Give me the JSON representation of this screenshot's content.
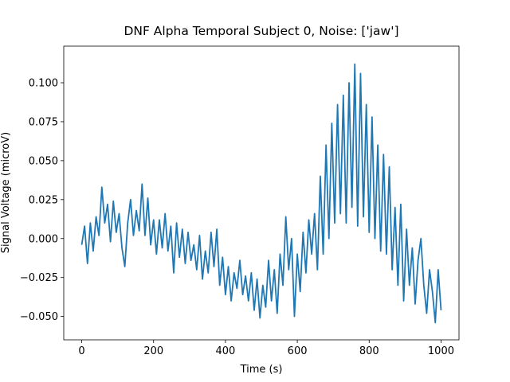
{
  "chart_data": {
    "type": "line",
    "title": "DNF Alpha Temporal Subject 0, Noise: ['jaw']",
    "x_label": "Time (s)",
    "y_label": "Signal Voltage (microV)",
    "x": [
      0,
      8,
      16,
      24,
      32,
      40,
      48,
      56,
      64,
      72,
      80,
      88,
      96,
      104,
      112,
      120,
      128,
      136,
      144,
      152,
      160,
      168,
      176,
      184,
      192,
      200,
      208,
      216,
      224,
      232,
      240,
      248,
      256,
      264,
      272,
      280,
      288,
      296,
      304,
      312,
      320,
      328,
      336,
      344,
      352,
      360,
      368,
      376,
      384,
      392,
      400,
      408,
      416,
      424,
      432,
      440,
      448,
      456,
      464,
      472,
      480,
      488,
      496,
      504,
      512,
      520,
      528,
      536,
      544,
      552,
      560,
      568,
      576,
      584,
      592,
      600,
      608,
      616,
      624,
      632,
      640,
      648,
      656,
      664,
      672,
      680,
      688,
      696,
      704,
      712,
      720,
      728,
      736,
      744,
      752,
      760,
      768,
      776,
      784,
      792,
      800,
      808,
      816,
      824,
      832,
      840,
      848,
      856,
      864,
      872,
      880,
      888,
      896,
      904,
      912,
      920,
      928,
      936,
      944,
      952,
      960,
      968,
      976,
      984,
      992,
      1000
    ],
    "series": [
      {
        "color": "#1f77b4",
        "values": [
          -0.004,
          0.008,
          -0.016,
          0.01,
          -0.008,
          0.014,
          0.002,
          0.033,
          0.01,
          0.022,
          -0.002,
          0.024,
          0.004,
          0.016,
          -0.006,
          -0.018,
          0.01,
          0.025,
          0.002,
          0.018,
          0.005,
          0.035,
          0.002,
          0.026,
          -0.004,
          0.012,
          -0.01,
          0.012,
          -0.006,
          0.016,
          -0.008,
          0.008,
          -0.022,
          0.01,
          -0.012,
          0.006,
          -0.016,
          0.004,
          -0.014,
          -0.004,
          -0.02,
          0.002,
          -0.026,
          -0.008,
          -0.022,
          0.004,
          -0.018,
          0.006,
          -0.03,
          -0.012,
          -0.036,
          -0.018,
          -0.04,
          -0.022,
          -0.032,
          -0.014,
          -0.036,
          -0.024,
          -0.04,
          -0.022,
          -0.046,
          -0.026,
          -0.051,
          -0.03,
          -0.044,
          -0.014,
          -0.04,
          -0.02,
          -0.048,
          -0.01,
          -0.03,
          0.014,
          -0.02,
          0.0,
          -0.05,
          -0.01,
          -0.034,
          0.004,
          -0.022,
          0.012,
          -0.01,
          0.016,
          -0.02,
          0.04,
          -0.01,
          0.06,
          0.0,
          0.074,
          0.01,
          0.086,
          0.016,
          0.092,
          0.01,
          0.1,
          0.02,
          0.112,
          0.008,
          0.106,
          0.014,
          0.086,
          0.004,
          0.078,
          0.0,
          0.06,
          -0.008,
          0.054,
          -0.01,
          0.046,
          -0.02,
          0.02,
          -0.03,
          0.022,
          -0.04,
          0.006,
          -0.03,
          -0.006,
          -0.042,
          -0.014,
          0.0,
          -0.03,
          -0.048,
          -0.02,
          -0.034,
          -0.054,
          -0.02,
          -0.046
        ]
      }
    ],
    "xlim": [
      -50,
      1050
    ],
    "ylim": [
      -0.065,
      0.1235
    ],
    "xticks": [
      0,
      200,
      400,
      600,
      800,
      1000
    ],
    "yticks": [
      {
        "value": -0.05,
        "label": "−0.050"
      },
      {
        "value": -0.025,
        "label": "−0.025"
      },
      {
        "value": 0,
        "label": "0.000"
      },
      {
        "value": 0.025,
        "label": "0.025"
      },
      {
        "value": 0.05,
        "label": "0.050"
      },
      {
        "value": 0.075,
        "label": "0.075"
      },
      {
        "value": 0.1,
        "label": "0.100"
      }
    ],
    "grid": false
  }
}
